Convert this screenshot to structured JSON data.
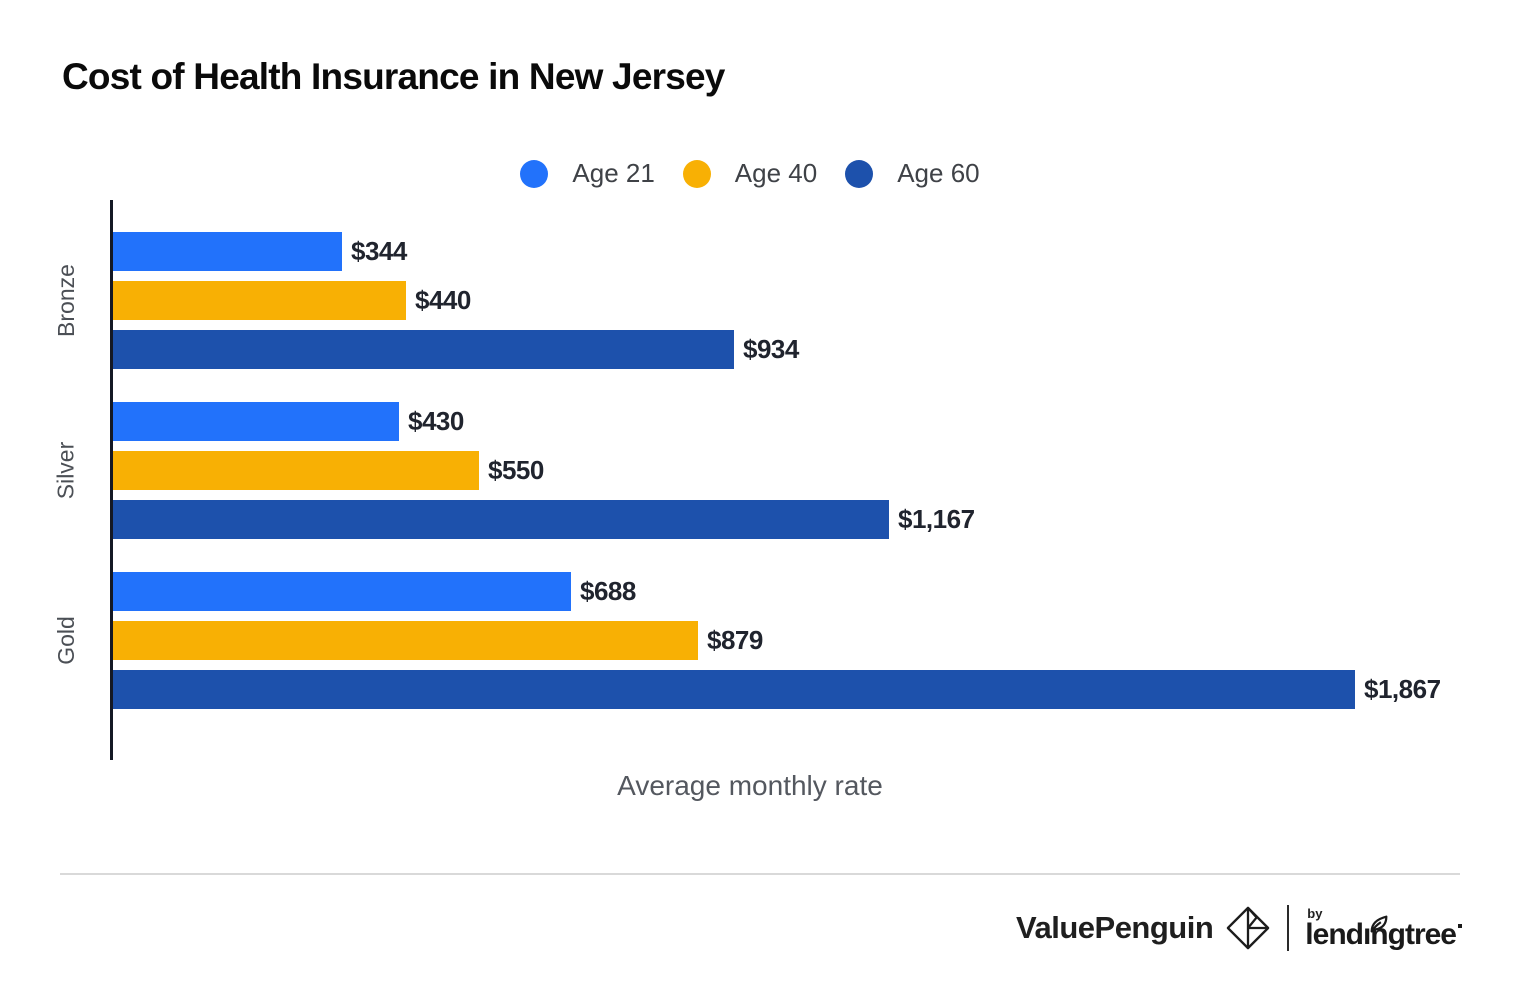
{
  "chart_data": {
    "type": "bar",
    "orientation": "horizontal",
    "title": "Cost of Health Insurance in New Jersey",
    "xlabel": "Average monthly rate",
    "xlim": [
      0,
      1867
    ],
    "grid": false,
    "legend_position": "top-center",
    "categories": [
      "Bronze",
      "Silver",
      "Gold"
    ],
    "series": [
      {
        "name": "Age 21",
        "color": "#2272fb",
        "values": [
          344,
          430,
          688
        ],
        "labels": [
          "$344",
          "$430",
          "$688"
        ]
      },
      {
        "name": "Age 40",
        "color": "#f8b004",
        "values": [
          440,
          550,
          879
        ],
        "labels": [
          "$440",
          "$550",
          "$879"
        ]
      },
      {
        "name": "Age 60",
        "color": "#1d51ac",
        "values": [
          934,
          1167,
          1867
        ],
        "labels": [
          "$934",
          "$1,167",
          "$1,867"
        ]
      }
    ]
  },
  "colors": {
    "axis": "#141824",
    "divider": "#d9d9d9",
    "value_text": "#20242e",
    "category_text": "#4b4f55",
    "xlabel_text": "#54585f"
  },
  "footer": {
    "brand": "ValuePenguin",
    "by_label": "by",
    "partner": "lendingtree",
    "icons": {
      "brand_mark": "origami-penguin-diamond-icon",
      "partner_mark": "leaf-icon"
    }
  }
}
